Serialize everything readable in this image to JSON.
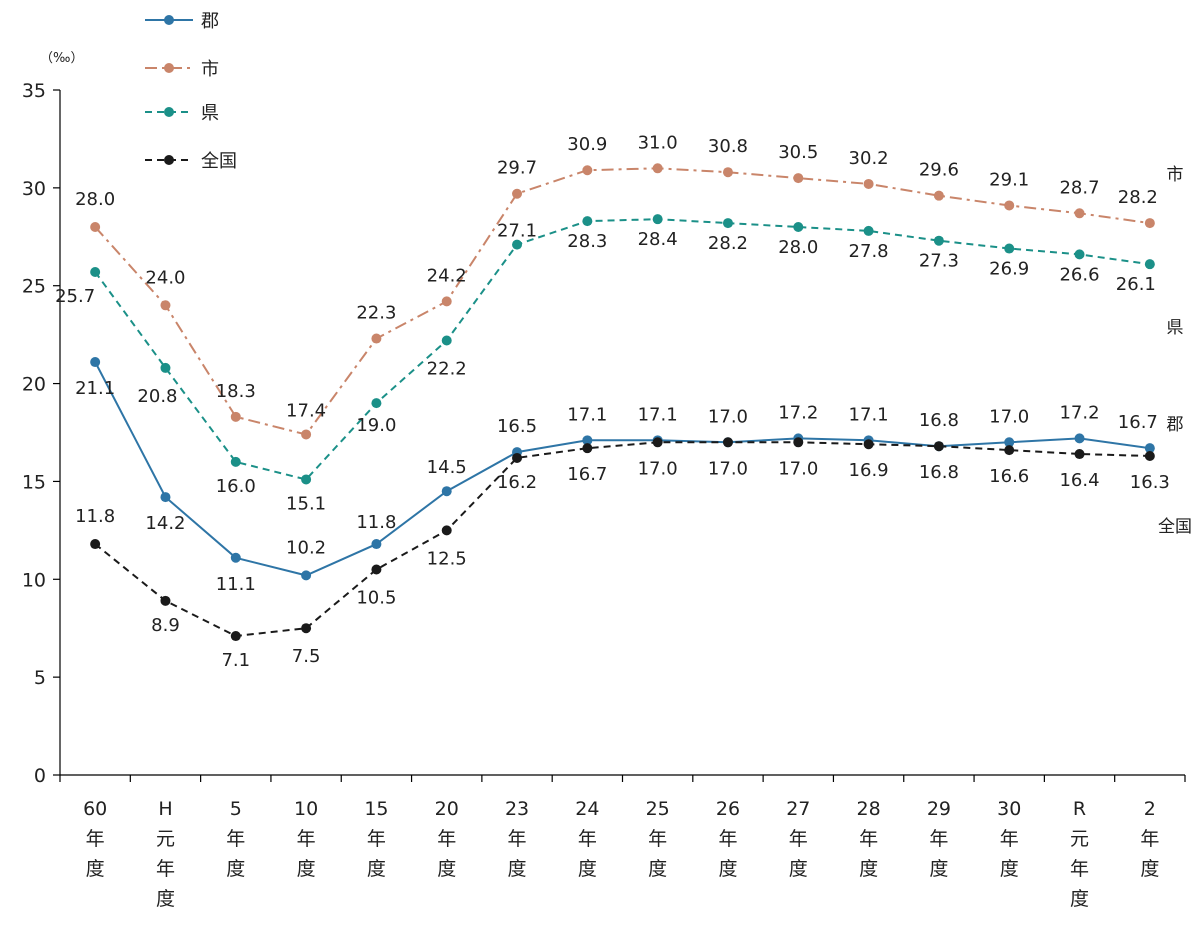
{
  "chart_data": {
    "type": "line",
    "y_unit": "（‰）",
    "ylim": [
      0,
      35
    ],
    "yticks": [
      0,
      5,
      10,
      15,
      20,
      25,
      30,
      35
    ],
    "grid": false,
    "legend_position": "top-left",
    "categories": [
      [
        "60",
        "年",
        "度"
      ],
      [
        "H",
        "元",
        "年",
        "度"
      ],
      [
        "5",
        "年",
        "度"
      ],
      [
        "10",
        "年",
        "度"
      ],
      [
        "15",
        "年",
        "度"
      ],
      [
        "20",
        "年",
        "度"
      ],
      [
        "23",
        "年",
        "度"
      ],
      [
        "24",
        "年",
        "度"
      ],
      [
        "25",
        "年",
        "度"
      ],
      [
        "26",
        "年",
        "度"
      ],
      [
        "27",
        "年",
        "度"
      ],
      [
        "28",
        "年",
        "度"
      ],
      [
        "29",
        "年",
        "度"
      ],
      [
        "30",
        "年",
        "度"
      ],
      [
        "R",
        "元",
        "年",
        "度"
      ],
      [
        "2",
        "年",
        "度"
      ]
    ],
    "series": [
      {
        "name": "郡",
        "color": "#2e75a6",
        "dash": "solid",
        "values": [
          21.1,
          14.2,
          11.1,
          10.2,
          11.8,
          14.5,
          16.5,
          17.1,
          17.1,
          17.0,
          17.2,
          17.1,
          16.8,
          17.0,
          17.2,
          16.7
        ]
      },
      {
        "name": "市",
        "color": "#c9856a",
        "dash": "dashdot",
        "values": [
          28.0,
          24.0,
          18.3,
          17.4,
          22.3,
          24.2,
          29.7,
          30.9,
          31.0,
          30.8,
          30.5,
          30.2,
          29.6,
          29.1,
          28.7,
          28.2
        ]
      },
      {
        "name": "県",
        "color": "#1b9088",
        "dash": "dashed",
        "values": [
          25.7,
          20.8,
          16.0,
          15.1,
          19.0,
          22.2,
          27.1,
          28.3,
          28.4,
          28.2,
          28.0,
          27.8,
          27.3,
          26.9,
          26.6,
          26.1
        ]
      },
      {
        "name": "全国",
        "color": "#1a1a1a",
        "dash": "dashed",
        "values": [
          11.8,
          8.9,
          7.1,
          7.5,
          10.5,
          12.5,
          16.2,
          16.7,
          17.0,
          17.0,
          17.0,
          16.9,
          16.8,
          16.6,
          16.4,
          16.3
        ]
      }
    ]
  }
}
